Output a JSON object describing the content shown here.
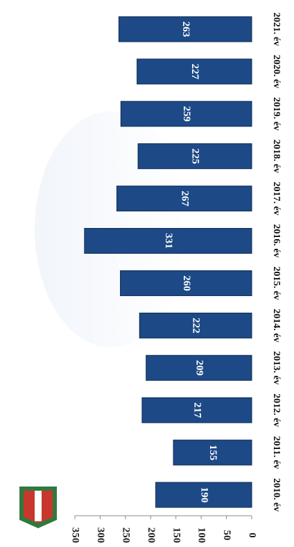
{
  "chart_data": {
    "type": "bar",
    "orientation": "rotated",
    "categories": [
      "2010. év",
      "2011. év",
      "2012. év",
      "2013. év",
      "2014. év",
      "2015. év",
      "2016. év",
      "2017. év",
      "2018. év",
      "2019. év",
      "2020. év",
      "2021. év"
    ],
    "values": [
      190,
      155,
      217,
      209,
      222,
      260,
      331,
      267,
      225,
      259,
      227,
      263
    ],
    "color": "#1d4a86",
    "ylim": [
      0,
      350
    ],
    "yticks": [
      0,
      50,
      100,
      150,
      200,
      250,
      300,
      350
    ]
  }
}
